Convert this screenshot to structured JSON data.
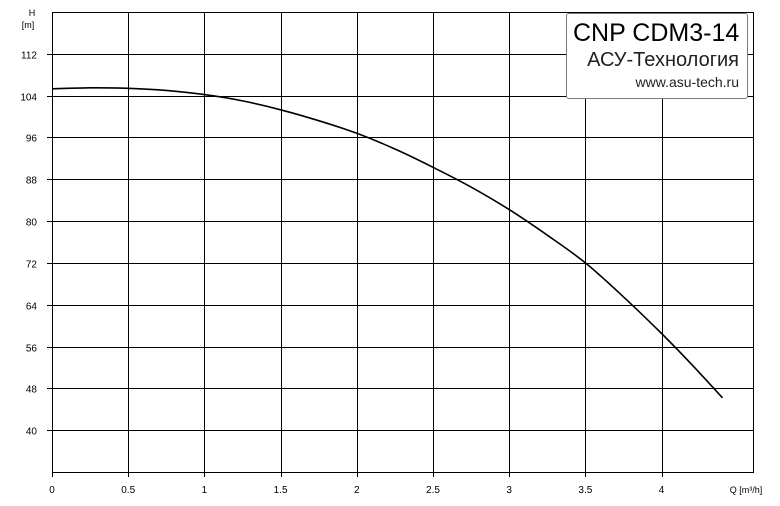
{
  "chart_data": {
    "type": "line",
    "title": "",
    "ylabel_symbol": "H",
    "ylabel_unit": "[m]",
    "xlabel": "Q [m³/h]",
    "xlim": [
      0,
      4.6
    ],
    "ylim": [
      32,
      120
    ],
    "x_ticks": [
      "0",
      "0.5",
      "1",
      "1.5",
      "2",
      "2.5",
      "3",
      "3.5",
      "4"
    ],
    "x_tick_values": [
      0,
      0.5,
      1,
      1.5,
      2,
      2.5,
      3,
      3.5,
      4
    ],
    "y_ticks": [
      "112",
      "104",
      "96",
      "88",
      "80",
      "72",
      "64",
      "56",
      "48",
      "40"
    ],
    "y_tick_values": [
      112,
      104,
      96,
      88,
      80,
      72,
      64,
      56,
      48,
      40
    ],
    "grid": true,
    "series": [
      {
        "color": "#000000",
        "points": [
          [
            0,
            105.3
          ],
          [
            0.25,
            105.5
          ],
          [
            0.5,
            105.4
          ],
          [
            0.75,
            105.0
          ],
          [
            1.0,
            104.2
          ],
          [
            1.25,
            103.0
          ],
          [
            1.5,
            101.3
          ],
          [
            1.75,
            99.2
          ],
          [
            2.0,
            96.8
          ],
          [
            2.25,
            93.8
          ],
          [
            2.5,
            90.3
          ],
          [
            2.75,
            86.5
          ],
          [
            3.0,
            82.2
          ],
          [
            3.25,
            77.3
          ],
          [
            3.5,
            72.0
          ],
          [
            3.75,
            65.5
          ],
          [
            4.0,
            58.5
          ],
          [
            4.2,
            52.5
          ],
          [
            4.4,
            46.2
          ]
        ]
      }
    ]
  },
  "brand": {
    "model": "CNP CDM3-14",
    "company": "АСУ-Технология",
    "website": "www.asu-tech.ru"
  }
}
